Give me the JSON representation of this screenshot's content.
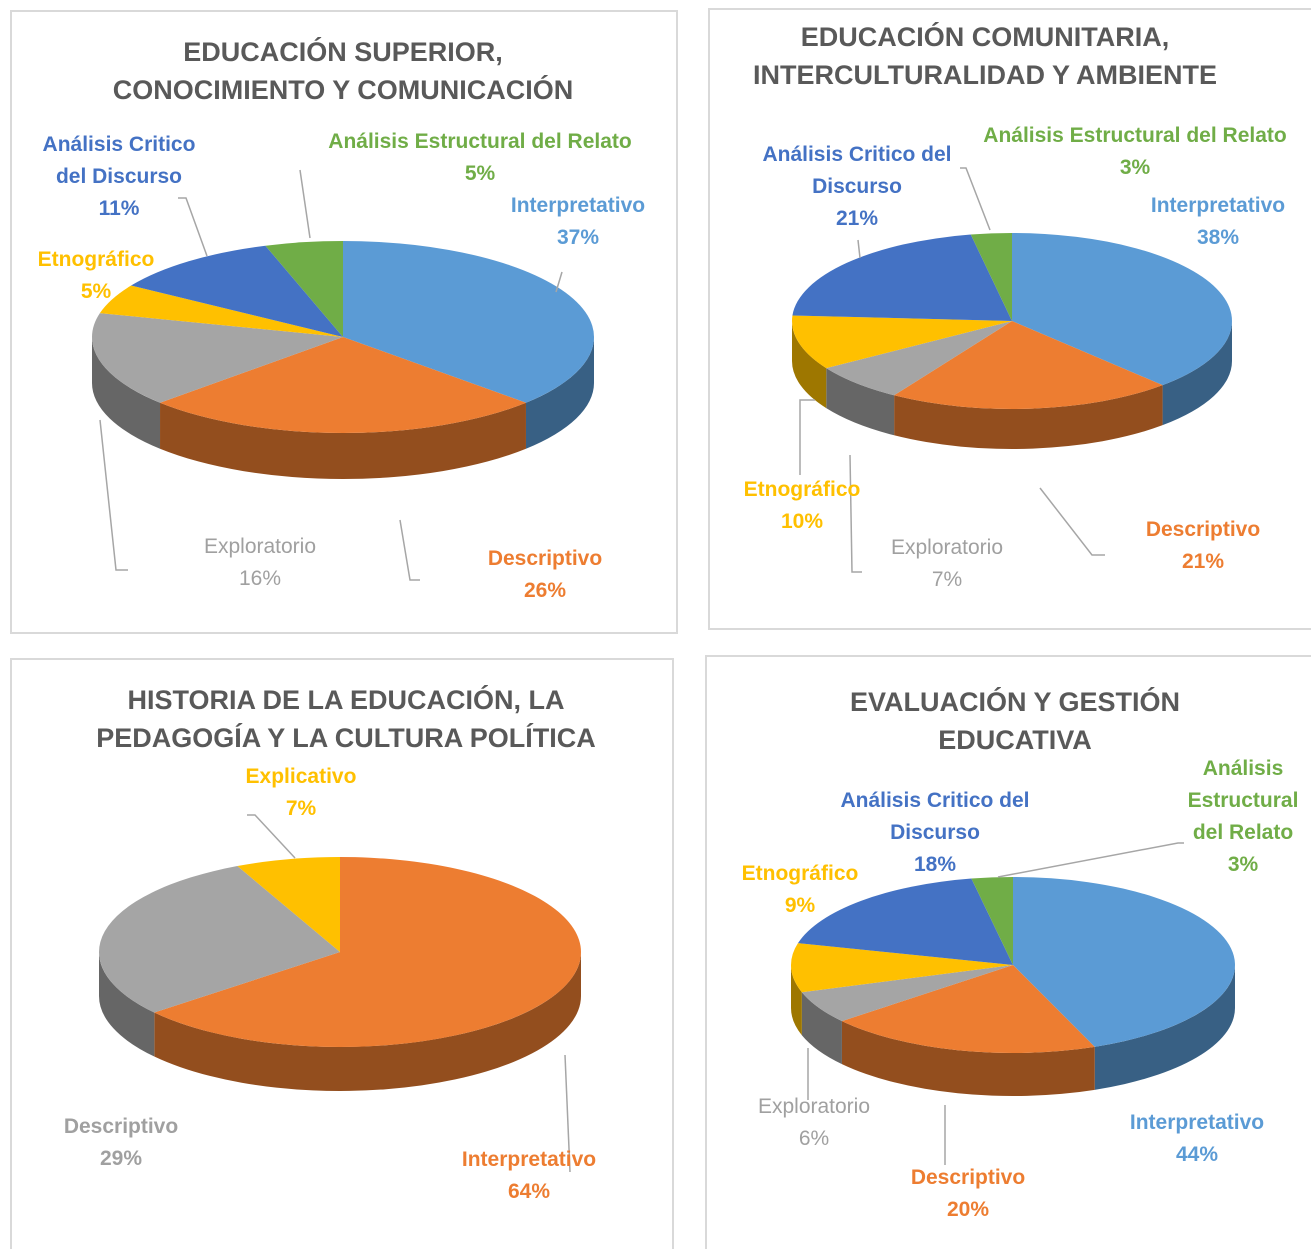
{
  "chart_data": [
    {
      "type": "pie",
      "title": [
        "EDUCACIÓN SUPERIOR,",
        "CONOCIMIENTO Y COMUNICACIÓN"
      ],
      "categories": [
        "Interpretativo",
        "Descriptivo",
        "Exploratorio",
        "Etnográfico",
        "Análisis Critico del Discurso",
        "Análisis Estructural del Relato"
      ],
      "values": [
        37,
        26,
        16,
        5,
        11,
        5
      ],
      "value_labels": [
        "37%",
        "26%",
        "16%",
        "5%",
        "11%",
        "5%"
      ],
      "colors": [
        "#5b9bd5",
        "#ed7d31",
        "#a5a5a5",
        "#ffc000",
        "#4472c4",
        "#70ad47"
      ]
    },
    {
      "type": "pie",
      "title": [
        "EDUCACIÓN COMUNITARIA,",
        "INTERCULTURALIDAD Y AMBIENTE"
      ],
      "categories": [
        "Interpretativo",
        "Descriptivo",
        "Exploratorio",
        "Etnográfico",
        "Análisis Critico del Discurso",
        "Análisis Estructural del Relato"
      ],
      "values": [
        38,
        21,
        7,
        10,
        21,
        3
      ],
      "value_labels": [
        "38%",
        "21%",
        "7%",
        "10%",
        "21%",
        "3%"
      ],
      "colors": [
        "#5b9bd5",
        "#ed7d31",
        "#a5a5a5",
        "#ffc000",
        "#4472c4",
        "#70ad47"
      ]
    },
    {
      "type": "pie",
      "title": [
        "HISTORIA DE LA EDUCACIÓN, LA",
        "PEDAGOGÍA Y LA CULTURA POLÍTICA"
      ],
      "categories": [
        "Interpretativo",
        "Descriptivo",
        "Explicativo"
      ],
      "values": [
        64,
        29,
        7
      ],
      "value_labels": [
        "64%",
        "29%",
        "7%"
      ],
      "colors": [
        "#ed7d31",
        "#a5a5a5",
        "#ffc000"
      ]
    },
    {
      "type": "pie",
      "title": [
        "EVALUACIÓN Y GESTIÓN",
        "EDUCATIVA"
      ],
      "categories": [
        "Interpretativo",
        "Descriptivo",
        "Exploratorio",
        "Etnográfico",
        "Análisis Critico del Discurso",
        "Análisis Estructural del Relato"
      ],
      "values": [
        44,
        20,
        6,
        9,
        18,
        3
      ],
      "value_labels": [
        "44%",
        "20%",
        "6%",
        "9%",
        "18%",
        "3%"
      ],
      "colors": [
        "#5b9bd5",
        "#ed7d31",
        "#a5a5a5",
        "#ffc000",
        "#4472c4",
        "#70ad47"
      ]
    }
  ]
}
